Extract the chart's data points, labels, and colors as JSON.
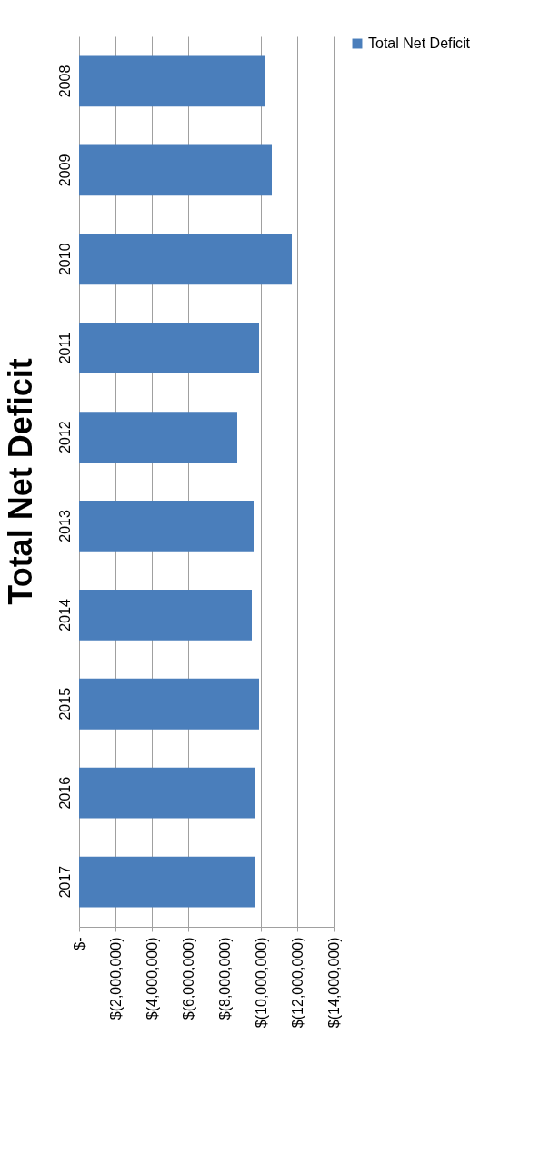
{
  "chart_data": {
    "type": "bar",
    "title": "Total Net Deficit",
    "orientation": "horizontal",
    "categories": [
      "2008",
      "2009",
      "2010",
      "2011",
      "2012",
      "2013",
      "2014",
      "2015",
      "2016",
      "2017"
    ],
    "series": [
      {
        "name": "Total Net Deficit",
        "color": "#4a7ebb",
        "values": [
          -10200000,
          -10600000,
          -11700000,
          -9900000,
          -8700000,
          -9600000,
          -9500000,
          -9900000,
          -9700000,
          -9700000
        ]
      }
    ],
    "xlim": [
      0,
      -14000000
    ],
    "xticks": [
      {
        "value": 0,
        "label": "$-"
      },
      {
        "value": -2000000,
        "label": "$(2,000,000)"
      },
      {
        "value": -4000000,
        "label": "$(4,000,000)"
      },
      {
        "value": -6000000,
        "label": "$(6,000,000)"
      },
      {
        "value": -8000000,
        "label": "$(8,000,000)"
      },
      {
        "value": -10000000,
        "label": "$(10,000,000)"
      },
      {
        "value": -12000000,
        "label": "$(12,000,000)"
      },
      {
        "value": -14000000,
        "label": "$(14,000,000)"
      }
    ],
    "grid": true,
    "legend": "right"
  }
}
